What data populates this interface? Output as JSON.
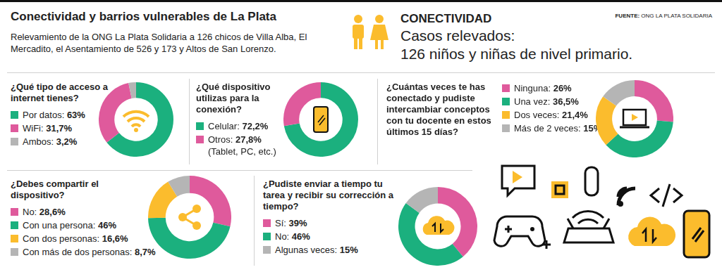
{
  "header": {
    "title": "Conectividad y barrios vulnerables de La Plata",
    "subtitle": "Relevamiento de la ONG La Plata Solidaria a 126 chicos de Villa Alba, El Mercadito, el Asentamiento de 526 y 173 y  Altos de San Lorenzo.",
    "section": "CONECTIVIDAD",
    "headline": [
      "Casos relevados:",
      "126 niños y niñas de nivel primario."
    ],
    "source_label": "FUENTE:",
    "source": "ONG LA PLATA SOLIDARIA"
  },
  "chart_data": [
    {
      "type": "doughnut",
      "title": "¿Qué tipo de acceso a internet tienes?",
      "categories": [
        "Por datos:",
        "WiFi:",
        "Ambos:"
      ],
      "values": [
        63,
        31.7,
        3.2
      ],
      "value_labels": [
        "63%",
        "31,7%",
        "3,2%"
      ],
      "colors": [
        "#1bb07e",
        "#df5a9c",
        "#b5b5b5"
      ]
    },
    {
      "type": "doughnut",
      "title": "¿Qué dispositivo utilizas para la conexión?",
      "categories": [
        "Celular:",
        "Otros:"
      ],
      "values": [
        72.2,
        27.8
      ],
      "value_labels": [
        "72,2%",
        "27,8%"
      ],
      "annotation": "(Tablet, PC, etc.)",
      "colors": [
        "#1bb07e",
        "#df5a9c"
      ]
    },
    {
      "type": "doughnut",
      "title": "¿Cuántas veces te has conectado y pudiste intercambiar conceptos con tu docente en estos últimos 15 días?",
      "categories": [
        "Ninguna:",
        "Una vez:",
        "Dos veces:",
        "Más de 2 veces:"
      ],
      "values": [
        26,
        36.5,
        21.4,
        15
      ],
      "value_labels": [
        "26%",
        "36,5%",
        "21,4%",
        "15%"
      ],
      "colors": [
        "#df5a9c",
        "#1bb07e",
        "#fbbc2d",
        "#b5b5b5"
      ]
    },
    {
      "type": "doughnut",
      "title": "¿Debes compartir el dispositivo?",
      "categories": [
        "No:",
        "Con una persona:",
        "Con dos personas:",
        "Con más de dos personas:"
      ],
      "values": [
        28.6,
        46,
        16.6,
        8.7
      ],
      "value_labels": [
        "28,6%",
        "46%",
        "16,6%",
        "8,7%"
      ],
      "colors": [
        "#df5a9c",
        "#1bb07e",
        "#fbbc2d",
        "#b5b5b5"
      ]
    },
    {
      "type": "doughnut",
      "title": "¿Pudiste enviar a tiempo tu tarea y recibir su corrección a tiempo?",
      "categories": [
        "Sí:",
        "No:",
        "Algunas veces:"
      ],
      "values": [
        39,
        46,
        15
      ],
      "value_labels": [
        "39%",
        "46%",
        "15%"
      ],
      "colors": [
        "#df5a9c",
        "#1bb07e",
        "#b5b5b5"
      ]
    }
  ]
}
